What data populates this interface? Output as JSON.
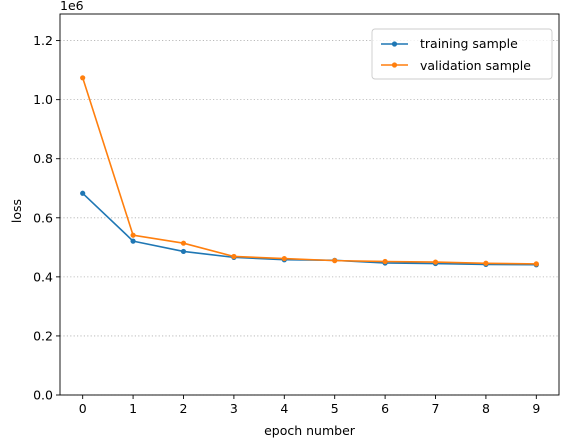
{
  "chart_data": {
    "type": "line",
    "title": "",
    "xlabel": "epoch number",
    "ylabel": "loss",
    "y_offset_label": "1e6",
    "x": [
      0,
      1,
      2,
      3,
      4,
      5,
      6,
      7,
      8,
      9
    ],
    "xlim": [
      -0.45,
      9.45
    ],
    "ylim": [
      0,
      1290000
    ],
    "x_ticks": [
      0,
      1,
      2,
      3,
      4,
      5,
      6,
      7,
      8,
      9
    ],
    "x_tick_labels": [
      "0",
      "1",
      "2",
      "3",
      "4",
      "5",
      "6",
      "7",
      "8",
      "9"
    ],
    "y_ticks": [
      0,
      200000,
      400000,
      600000,
      800000,
      1000000,
      1200000
    ],
    "y_tick_labels": [
      "0.0",
      "0.2",
      "0.4",
      "0.6",
      "0.8",
      "1.0",
      "1.2"
    ],
    "grid": "horizontal, dotted",
    "legend_position": "top-right",
    "series": [
      {
        "name": "training sample",
        "color": "#1f77b4",
        "marker": "circle",
        "values": [
          683000,
          521000,
          486000,
          466000,
          458000,
          456000,
          447000,
          445000,
          442000,
          441000
        ]
      },
      {
        "name": "validation sample",
        "color": "#ff7f0e",
        "marker": "circle",
        "values": [
          1074000,
          541000,
          514000,
          469000,
          462000,
          455000,
          452000,
          450000,
          446000,
          444000
        ]
      }
    ]
  }
}
